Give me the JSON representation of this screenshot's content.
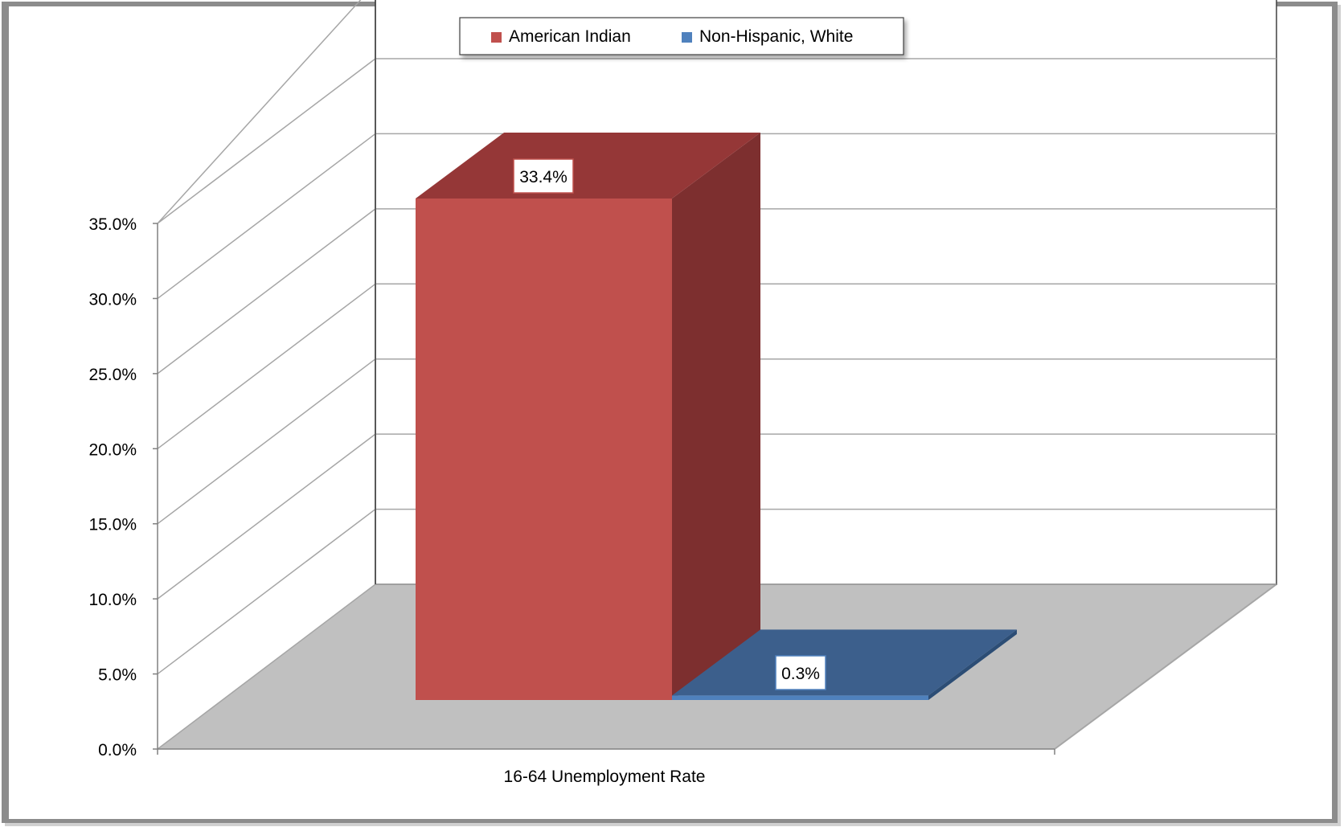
{
  "chart_data": {
    "type": "bar",
    "style": "3d-clustered-column",
    "title": "",
    "xlabel": "",
    "ylabel": "",
    "categories": [
      "16-64 Unemployment Rate"
    ],
    "series": [
      {
        "name": "American Indian",
        "values": [
          33.4
        ],
        "color": "#c0504d",
        "color_side": "#7d2f2f",
        "color_top": "#953737"
      },
      {
        "name": "Non-Hispanic, White",
        "values": [
          0.3
        ],
        "color": "#4f81bd",
        "color_side": "#2c4d75",
        "color_top": "#3c5f8c"
      }
    ],
    "data_labels": [
      "33.4%",
      "0.3%"
    ],
    "y_ticks": [
      "0.0%",
      "5.0%",
      "10.0%",
      "15.0%",
      "20.0%",
      "25.0%",
      "30.0%",
      "35.0%"
    ],
    "ylim": [
      0,
      35
    ],
    "y_unit": "%",
    "grid": true,
    "legend_position": "top",
    "colors": {
      "floor": "#c0c0c0",
      "gridline": "#a6a6a6",
      "axis": "#808080",
      "back_wall_border": "#404040",
      "frame_shadow": "#8c8c8c"
    }
  }
}
